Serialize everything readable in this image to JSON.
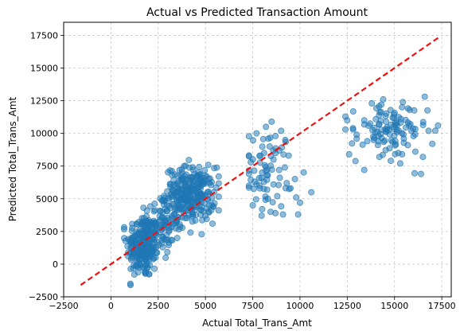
{
  "chart_data": {
    "type": "scatter",
    "title": "Actual vs Predicted Transaction Amount",
    "xlabel": "Actual Total_Trans_Amt",
    "ylabel": "Predicted Total_Trans_Amt",
    "xlim": [
      -2500,
      18000
    ],
    "ylim": [
      -2500,
      18500
    ],
    "xticks": [
      -2500,
      0,
      2500,
      5000,
      7500,
      10000,
      12500,
      15000,
      17500
    ],
    "xtick_labels": [
      "−2500",
      "0",
      "2500",
      "5000",
      "7500",
      "10000",
      "12500",
      "15000",
      "17500"
    ],
    "yticks": [
      -2500,
      0,
      2500,
      5000,
      7500,
      10000,
      12500,
      15000,
      17500
    ],
    "ytick_labels": [
      "−2500",
      "0",
      "2500",
      "5000",
      "7500",
      "10000",
      "12500",
      "15000",
      "17500"
    ],
    "grid": true,
    "point_color": "#1f77b4",
    "reference_line": {
      "style": "dashed",
      "color": "#ee1111",
      "x": [
        -1600,
        17300
      ],
      "y": [
        -1600,
        17300
      ]
    },
    "clusters": [
      {
        "n": 230,
        "x_mean": 1700,
        "x_sd": 430,
        "y_mean": 1400,
        "y_sd": 1250,
        "x_min": 700,
        "x_max": 3400,
        "y_min": -1600,
        "y_max": 5400
      },
      {
        "n": 90,
        "x_mean": 2700,
        "x_sd": 450,
        "y_mean": 3000,
        "y_sd": 1100,
        "x_min": 1600,
        "x_max": 3800,
        "y_min": 500,
        "y_max": 6300
      },
      {
        "n": 280,
        "x_mean": 4200,
        "x_sd": 650,
        "y_mean": 5300,
        "y_sd": 1050,
        "x_min": 2800,
        "x_max": 5700,
        "y_min": 1800,
        "y_max": 8600
      },
      {
        "n": 55,
        "x_mean": 8300,
        "x_sd": 650,
        "y_mean": 7300,
        "y_sd": 1500,
        "x_min": 7300,
        "x_max": 10700,
        "y_min": 3700,
        "y_max": 10900
      },
      {
        "n": 90,
        "x_mean": 14700,
        "x_sd": 1000,
        "y_mean": 10100,
        "y_sd": 1050,
        "x_min": 12400,
        "x_max": 17400,
        "y_min": 6900,
        "y_max": 12800
      }
    ],
    "points": [
      [
        7400,
        7800
      ],
      [
        7600,
        6300
      ],
      [
        8000,
        7000
      ],
      [
        8300,
        6800
      ],
      [
        8600,
        6100
      ],
      [
        8900,
        7200
      ],
      [
        9200,
        7400
      ],
      [
        8400,
        9000
      ],
      [
        8700,
        9800
      ],
      [
        9000,
        10200
      ],
      [
        8200,
        10500
      ],
      [
        8500,
        10900
      ],
      [
        7700,
        10000
      ],
      [
        8100,
        8500
      ],
      [
        8900,
        8700
      ],
      [
        9400,
        8300
      ],
      [
        7500,
        4500
      ],
      [
        8000,
        4200
      ],
      [
        8700,
        3900
      ],
      [
        9100,
        3800
      ],
      [
        9900,
        3800
      ],
      [
        10600,
        5500
      ],
      [
        9800,
        5100
      ],
      [
        9500,
        5800
      ],
      [
        8800,
        5200
      ],
      [
        8300,
        5000
      ],
      [
        7900,
        8300
      ],
      [
        8600,
        8000
      ],
      [
        9300,
        6200
      ],
      [
        10000,
        4700
      ],
      [
        12500,
        11000
      ],
      [
        12400,
        10300
      ],
      [
        12600,
        8400
      ],
      [
        13000,
        9900
      ],
      [
        13400,
        11000
      ],
      [
        13800,
        12300
      ],
      [
        14300,
        12200
      ],
      [
        14400,
        12600
      ],
      [
        14900,
        11200
      ],
      [
        15400,
        12000
      ],
      [
        15800,
        11800
      ],
      [
        16600,
        12800
      ],
      [
        16800,
        10200
      ],
      [
        17300,
        10600
      ],
      [
        17000,
        9200
      ],
      [
        16500,
        8200
      ],
      [
        16100,
        8600
      ],
      [
        15300,
        7700
      ],
      [
        14800,
        7900
      ],
      [
        14200,
        8200
      ],
      [
        13400,
        7200
      ],
      [
        13000,
        9600
      ],
      [
        15700,
        9100
      ],
      [
        16400,
        6900
      ],
      [
        12800,
        10400
      ],
      [
        14600,
        10300
      ],
      [
        15100,
        10800
      ],
      [
        15900,
        10200
      ],
      [
        13900,
        9500
      ],
      [
        14200,
        10700
      ]
    ]
  }
}
